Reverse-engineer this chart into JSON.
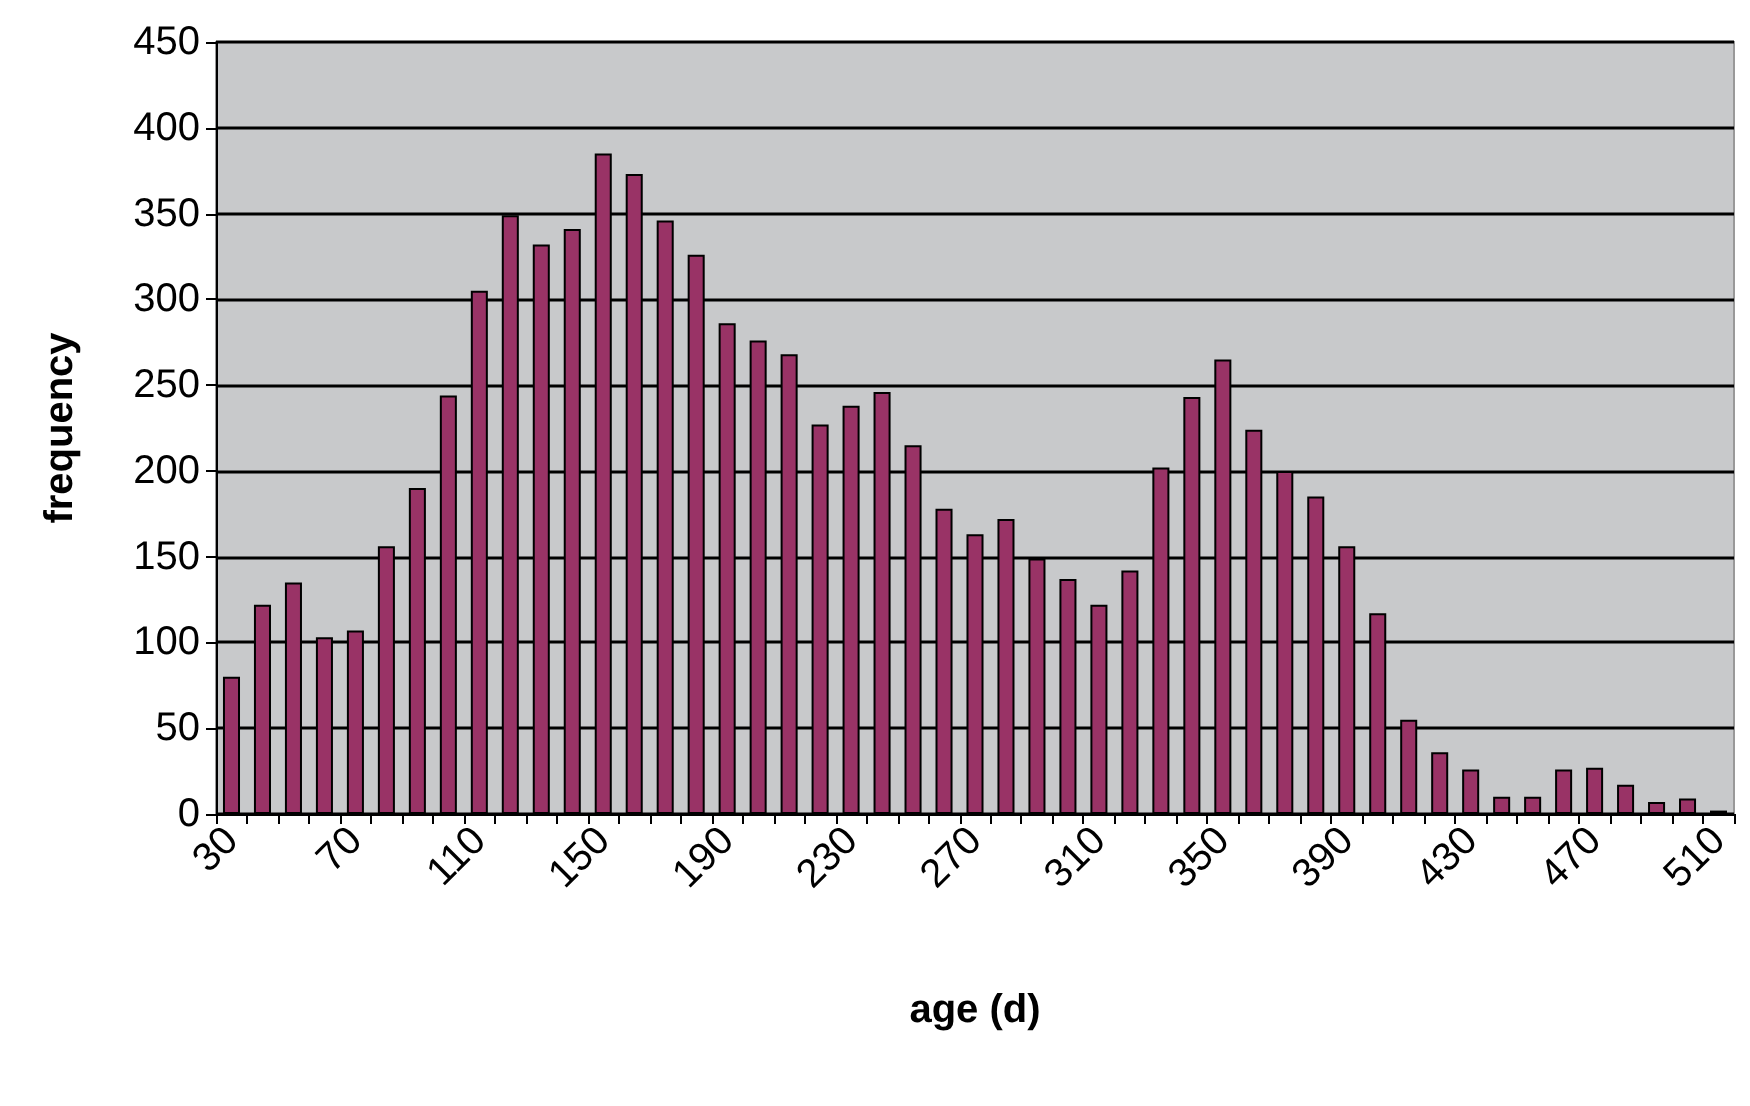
{
  "chart_data": {
    "type": "bar",
    "xlabel": "age (d)",
    "ylabel": "frequency",
    "categories": [
      "30",
      null,
      null,
      null,
      "70",
      null,
      null,
      null,
      "110",
      null,
      null,
      null,
      "150",
      null,
      null,
      null,
      "190",
      null,
      null,
      null,
      "230",
      null,
      null,
      null,
      "270",
      null,
      null,
      null,
      "310",
      null,
      null,
      null,
      "350",
      null,
      null,
      null,
      "390",
      null,
      null,
      null,
      "430",
      null,
      null,
      null,
      "470",
      null,
      null,
      null,
      "510"
    ],
    "values": [
      80,
      122,
      135,
      103,
      107,
      156,
      190,
      244,
      305,
      349,
      332,
      341,
      385,
      373,
      346,
      326,
      286,
      276,
      268,
      227,
      238,
      246,
      215,
      178,
      163,
      172,
      149,
      137,
      122,
      142,
      202,
      243,
      265,
      224,
      200,
      185,
      156,
      117,
      55,
      36,
      26,
      10,
      10,
      26,
      27,
      17,
      7,
      9,
      2
    ],
    "color": "#993366",
    "ylim": [
      0,
      450
    ],
    "yticks": [
      0,
      50,
      100,
      150,
      200,
      250,
      300,
      350,
      400,
      450
    ],
    "grid": "y"
  }
}
